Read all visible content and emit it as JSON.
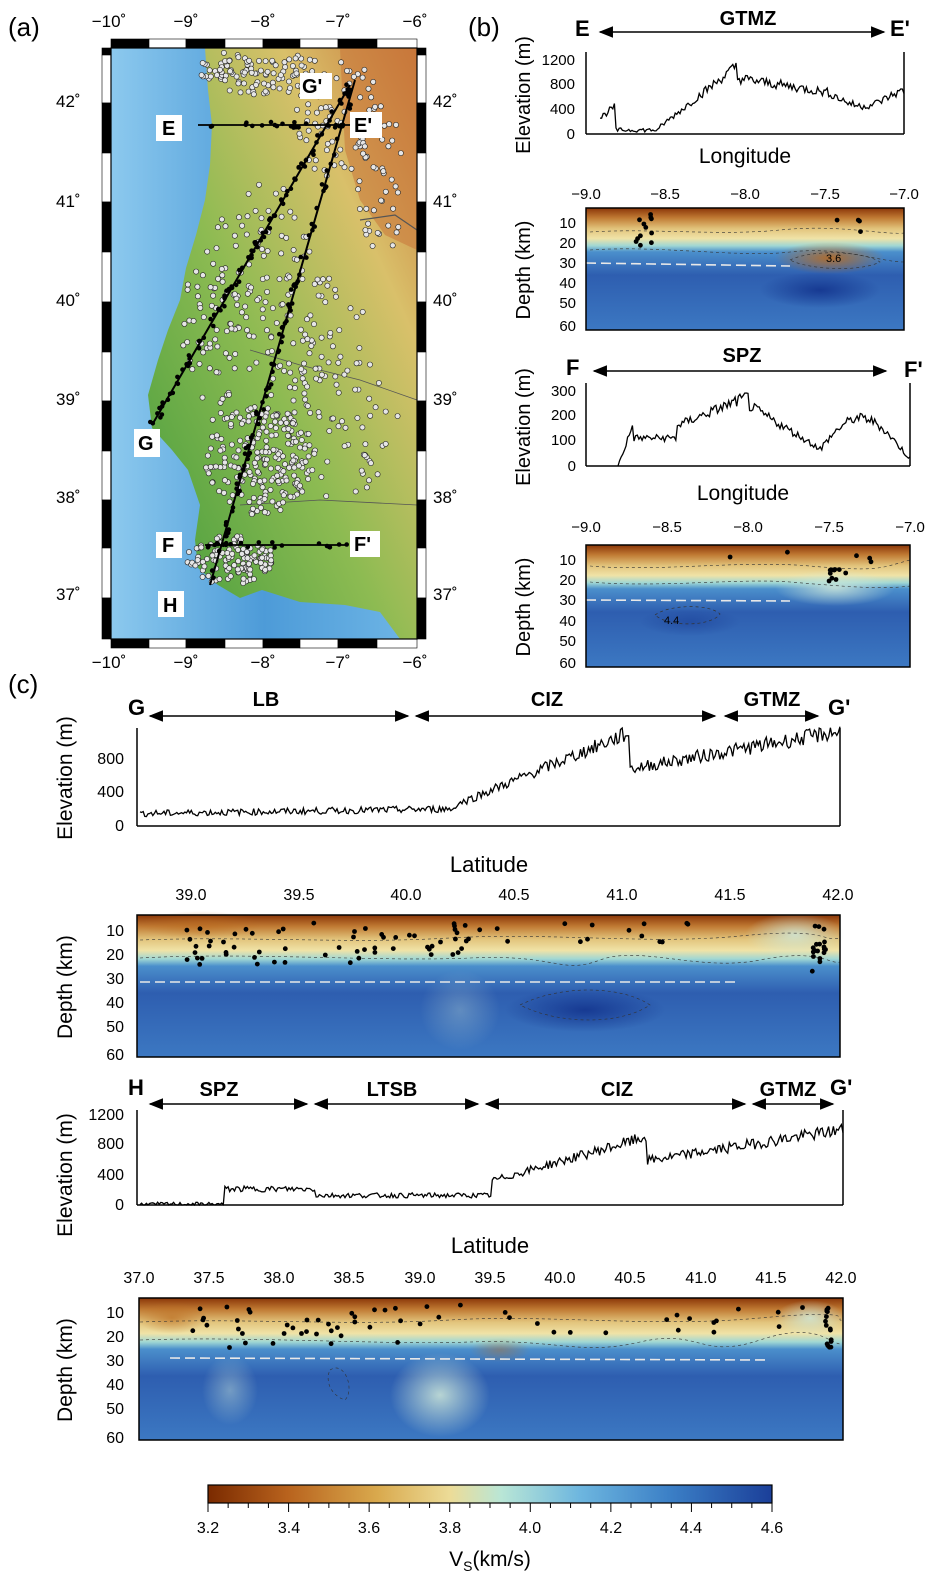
{
  "panels": {
    "a": "(a)",
    "b": "(b)",
    "c": "(c)"
  },
  "map": {
    "lon_ticks": [
      "−10˚",
      "−9˚",
      "−8˚",
      "−7˚",
      "−6˚"
    ],
    "lat_ticks": [
      "42˚",
      "41˚",
      "40˚",
      "39˚",
      "38˚",
      "37˚"
    ],
    "points": {
      "E": "E",
      "E2": "E'",
      "F": "F",
      "F2": "F'",
      "G": "G",
      "G2": "G'",
      "H": "H"
    }
  },
  "b_ef": {
    "ends": [
      "E",
      "E'"
    ],
    "zone": "GTMZ",
    "elev_ylabel": "Elevation (m)",
    "elev_ticks": [
      "1200",
      "800",
      "400",
      "0"
    ],
    "xlabel": "Longitude",
    "lon_ticks": [
      "−9.0",
      "−8.5",
      "−8.0",
      "−7.5",
      "−7.0"
    ],
    "depth_ylabel": "Depth (km)",
    "depth_ticks": [
      "10",
      "20",
      "30",
      "40",
      "50",
      "60"
    ],
    "contour_label": "3.6"
  },
  "b_ff": {
    "ends": [
      "F",
      "F'"
    ],
    "zone": "SPZ",
    "elev_ylabel": "Elevation (m)",
    "elev_ticks": [
      "300",
      "200",
      "100",
      "0"
    ],
    "xlabel": "Longitude",
    "lon_ticks": [
      "−9.0",
      "−8.5",
      "−8.0",
      "−7.5",
      "−7.0"
    ],
    "depth_ylabel": "Depth (km)",
    "depth_ticks": [
      "10",
      "20",
      "30",
      "40",
      "50",
      "60"
    ],
    "contour_label": "4.4"
  },
  "c_gg": {
    "ends": [
      "G",
      "G'"
    ],
    "zones": [
      "LB",
      "CIZ",
      "GTMZ"
    ],
    "elev_ylabel": "Elevation (m)",
    "elev_ticks": [
      "800",
      "400",
      "0"
    ],
    "xlabel": "Latitude",
    "lat_ticks": [
      "39.0",
      "39.5",
      "40.0",
      "40.5",
      "41.0",
      "41.5",
      "42.0"
    ],
    "depth_ylabel": "Depth (km)",
    "depth_ticks": [
      "10",
      "20",
      "30",
      "40",
      "50",
      "60"
    ]
  },
  "c_hg": {
    "ends": [
      "H",
      "G'"
    ],
    "zones": [
      "SPZ",
      "LTSB",
      "CIZ",
      "GTMZ"
    ],
    "elev_ylabel": "Elevation (m)",
    "elev_ticks": [
      "1200",
      "800",
      "400",
      "0"
    ],
    "xlabel": "Latitude",
    "lat_ticks": [
      "37.0",
      "37.5",
      "38.0",
      "38.5",
      "39.0",
      "39.5",
      "40.0",
      "40.5",
      "41.0",
      "41.5",
      "42.0"
    ],
    "depth_ylabel": "Depth (km)",
    "depth_ticks": [
      "10",
      "20",
      "30",
      "40",
      "50",
      "60"
    ]
  },
  "colorbar": {
    "ticks": [
      "3.2",
      "3.4",
      "3.6",
      "3.8",
      "4.0",
      "4.2",
      "4.4",
      "4.6"
    ],
    "label": "V",
    "label_sub": "S",
    "label_unit": "(km/s)",
    "colors": [
      "#7a2a00",
      "#b8621d",
      "#d9a94d",
      "#ecdc98",
      "#b9e6d6",
      "#6db6df",
      "#3b7fc6",
      "#1b3f99"
    ]
  }
}
